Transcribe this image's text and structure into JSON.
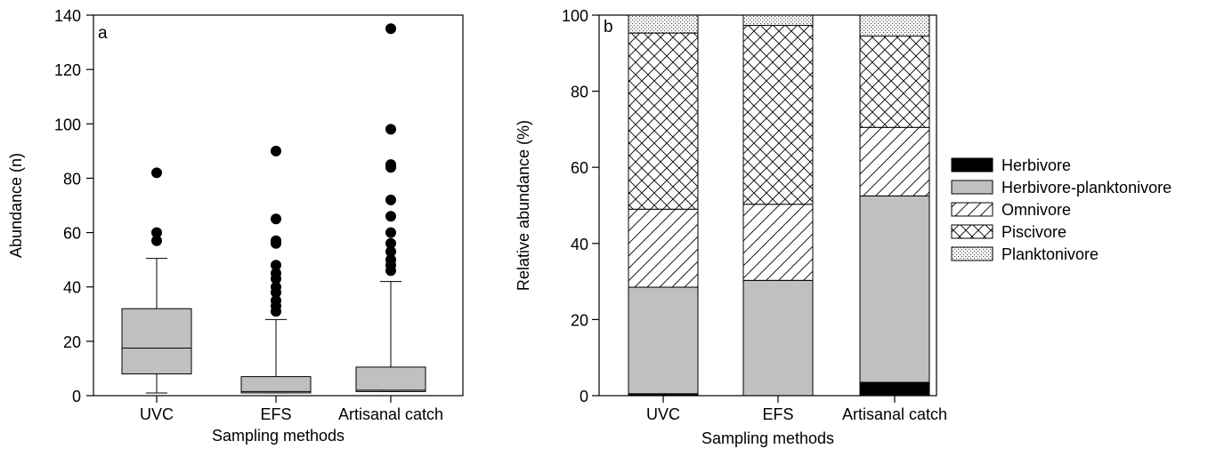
{
  "chart_data": [
    {
      "type": "box",
      "panel_label": "a",
      "categories": [
        "UVC",
        "EFS",
        "Artisanal catch"
      ],
      "xlabel": "Sampling methods",
      "ylabel": "Abundance (n)",
      "ylim": [
        0,
        140
      ],
      "yticks": [
        0,
        20,
        40,
        60,
        80,
        100,
        120,
        140
      ],
      "boxes": [
        {
          "category": "UVC",
          "whisker_low": 1,
          "q1": 8,
          "median": 17.5,
          "q3": 32,
          "whisker_high": 50.5,
          "outliers": [
            57,
            60,
            82
          ]
        },
        {
          "category": "EFS",
          "whisker_low": 1,
          "q1": 1,
          "median": 1.5,
          "q3": 7,
          "whisker_high": 28,
          "outliers": [
            31,
            33,
            35,
            38,
            40,
            43,
            45,
            48,
            56,
            57,
            65,
            90
          ]
        },
        {
          "category": "Artisanal catch",
          "whisker_low": 1.5,
          "q1": 1.5,
          "median": 2,
          "q3": 10.5,
          "whisker_high": 42,
          "outliers": [
            46,
            48,
            50,
            53,
            56,
            60,
            66,
            72,
            84,
            85,
            98,
            135
          ]
        }
      ],
      "box_color": "#c0c0c0"
    },
    {
      "type": "stacked-bar",
      "panel_label": "b",
      "categories": [
        "UVC",
        "EFS",
        "Artisanal catch"
      ],
      "xlabel": "Sampling methods",
      "ylabel": "Relative abundance (%)",
      "ylim": [
        0,
        100
      ],
      "yticks": [
        0,
        20,
        40,
        60,
        80,
        100
      ],
      "legend_position": "right",
      "series": [
        {
          "name": "Herbivore",
          "pattern": "solid-black",
          "values": [
            0.5,
            0,
            3.5
          ]
        },
        {
          "name": "Herbivore-planktonivore",
          "pattern": "solid-gray",
          "values": [
            28,
            30.3,
            49
          ]
        },
        {
          "name": "Omnivore",
          "pattern": "diagonal",
          "values": [
            20.5,
            20,
            18
          ]
        },
        {
          "name": "Piscivore",
          "pattern": "crosshatch",
          "values": [
            46.3,
            47,
            24
          ]
        },
        {
          "name": "Planktonivore",
          "pattern": "dotted",
          "values": [
            4.7,
            2.7,
            5.5
          ]
        }
      ]
    }
  ]
}
